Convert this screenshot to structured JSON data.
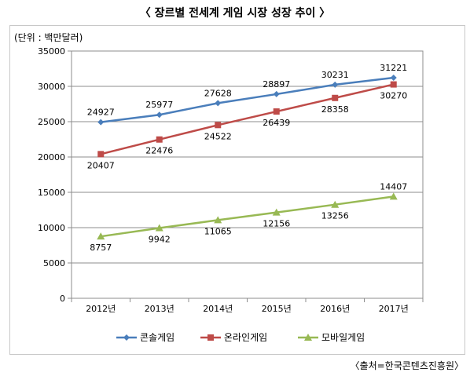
{
  "title": "〈 장르별 전세계 게임 시장 성장 추이 〉",
  "unit_label": "(단위 : 백만달러)",
  "source": "〈출처=한국콘텐츠진흥원〉",
  "chart_data": {
    "type": "line",
    "categories": [
      "2012년",
      "2013년",
      "2014년",
      "2015년",
      "2016년",
      "2017년"
    ],
    "ylim": [
      0,
      35000
    ],
    "yticks": [
      0,
      5000,
      10000,
      15000,
      20000,
      25000,
      30000,
      35000
    ],
    "grid": true,
    "legend": "bottom",
    "series": [
      {
        "name": "콘솔게임",
        "values": [
          24927,
          25977,
          27628,
          28897,
          30231,
          31221
        ],
        "color": "#4a7ebb",
        "marker": "diamond",
        "label_pos": "above"
      },
      {
        "name": "온라인게임",
        "values": [
          20407,
          22476,
          24522,
          26439,
          28358,
          30270
        ],
        "color": "#be4b48",
        "marker": "square",
        "label_pos": "below"
      },
      {
        "name": "모바일게임",
        "values": [
          8757,
          9942,
          11065,
          12156,
          13256,
          14407
        ],
        "color": "#98b954",
        "marker": "triangle",
        "label_pos": "mixed"
      }
    ]
  }
}
